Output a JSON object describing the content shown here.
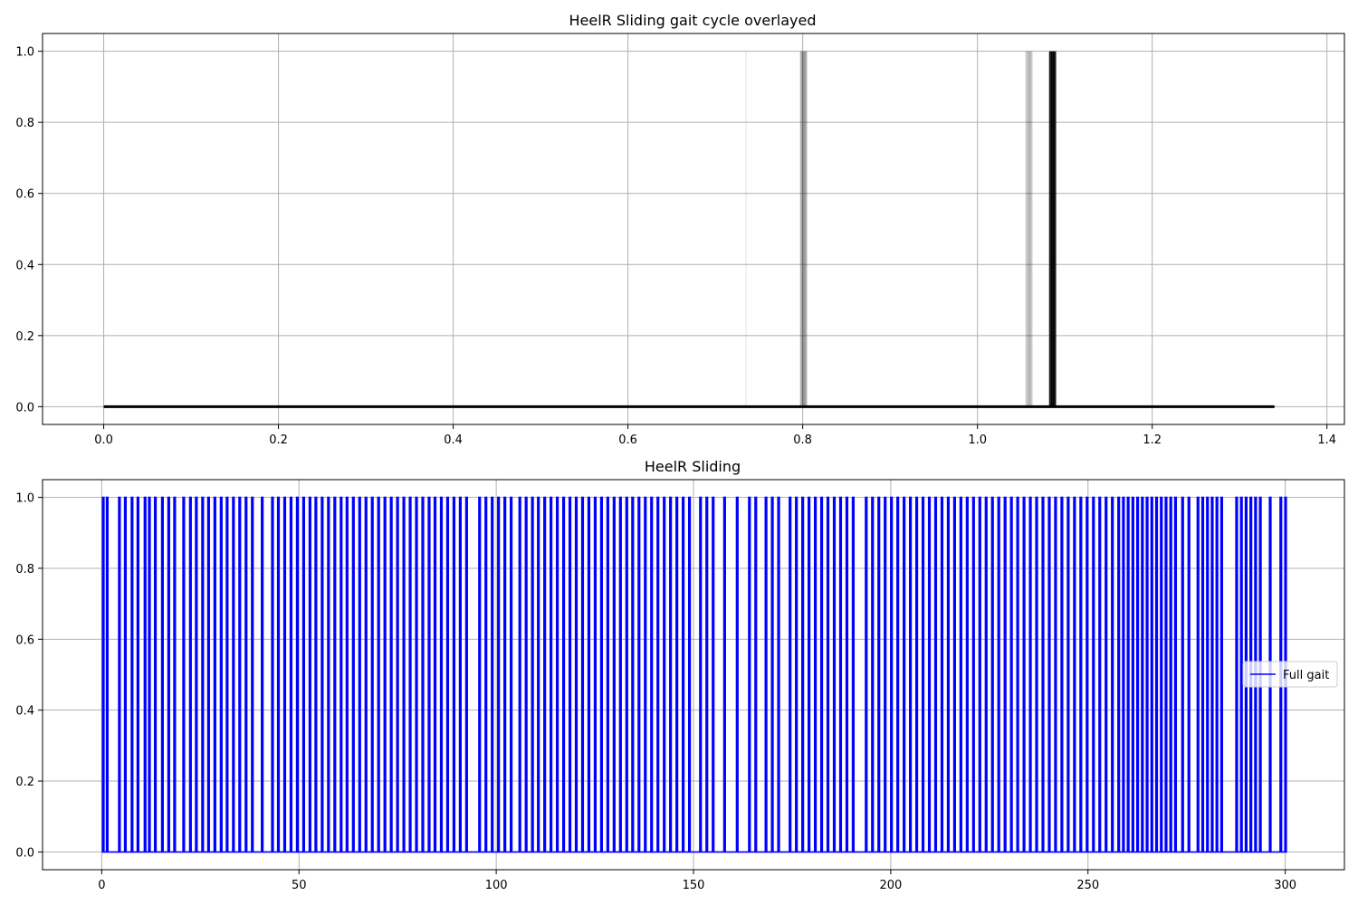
{
  "chart_data": [
    {
      "type": "line",
      "title": "HeelR Sliding gait cycle overlayed",
      "xlabel": "",
      "ylabel": "",
      "xlim": [
        -0.07,
        1.42
      ],
      "ylim": [
        -0.05,
        1.05
      ],
      "xticks": [
        0.0,
        0.2,
        0.4,
        0.6,
        0.8,
        1.0,
        1.2,
        1.4
      ],
      "xtick_labels": [
        "0.0",
        "0.2",
        "0.4",
        "0.6",
        "0.8",
        "1.0",
        "1.2",
        "1.4"
      ],
      "yticks": [
        0.0,
        0.2,
        0.4,
        0.6,
        0.8,
        1.0
      ],
      "ytick_labels": [
        "0.0",
        "0.2",
        "0.4",
        "0.6",
        "0.8",
        "1.0"
      ],
      "grid": true,
      "color": "#000000",
      "baseline": {
        "x": [
          0.0,
          1.34
        ],
        "y": 0.0
      },
      "pulses": [
        {
          "x": 0.735,
          "opacity": 0.06
        },
        {
          "x": 0.798,
          "opacity": 0.3
        },
        {
          "x": 0.8,
          "opacity": 0.4
        },
        {
          "x": 0.802,
          "opacity": 0.4
        },
        {
          "x": 0.804,
          "opacity": 0.3
        },
        {
          "x": 1.056,
          "opacity": 0.2
        },
        {
          "x": 1.058,
          "opacity": 0.25
        },
        {
          "x": 1.06,
          "opacity": 0.3
        },
        {
          "x": 1.062,
          "opacity": 0.2
        },
        {
          "x": 1.083,
          "opacity": 0.9
        },
        {
          "x": 1.085,
          "opacity": 1.0
        },
        {
          "x": 1.087,
          "opacity": 1.0
        },
        {
          "x": 1.089,
          "opacity": 0.9
        }
      ]
    },
    {
      "type": "line",
      "title": "HeelR Sliding",
      "xlabel": "",
      "ylabel": "",
      "xlim": [
        -15,
        315
      ],
      "ylim": [
        -0.05,
        1.05
      ],
      "xticks": [
        0,
        50,
        100,
        150,
        200,
        250,
        300
      ],
      "xtick_labels": [
        "0",
        "50",
        "100",
        "150",
        "200",
        "250",
        "300"
      ],
      "yticks": [
        0.0,
        0.2,
        0.4,
        0.6,
        0.8,
        1.0
      ],
      "ytick_labels": [
        "0.0",
        "0.2",
        "0.4",
        "0.6",
        "0.8",
        "1.0"
      ],
      "grid": true,
      "legend": {
        "entries": [
          "Full gait"
        ],
        "location": "center-right"
      },
      "series": [
        {
          "name": "Full gait",
          "color": "#0000ff",
          "x_range": [
            0,
            300
          ],
          "spikes": [
            0.2,
            1.2,
            4.3,
            5.8,
            7.5,
            9.0,
            10.8,
            11.9,
            13.4,
            15.2,
            16.8,
            18.3,
            20.6,
            22.3,
            23.8,
            25.4,
            26.9,
            28.5,
            30.1,
            31.6,
            33.2,
            34.8,
            36.4,
            38.0,
            40.5,
            43.1,
            44.6,
            46.2,
            47.8,
            49.4,
            51.0,
            52.6,
            54.1,
            55.7,
            57.3,
            58.9,
            60.5,
            62.0,
            63.6,
            65.2,
            66.8,
            68.4,
            70.0,
            71.6,
            73.2,
            74.8,
            76.4,
            78.0,
            79.6,
            81.2,
            82.8,
            84.3,
            85.9,
            87.5,
            89.1,
            90.7,
            92.3,
            95.6,
            97.2,
            98.8,
            100.4,
            102.0,
            103.6,
            105.8,
            107.4,
            109.0,
            110.5,
            112.1,
            113.7,
            115.3,
            116.9,
            118.5,
            120.1,
            121.7,
            123.3,
            124.9,
            126.5,
            128.1,
            129.7,
            131.3,
            132.9,
            134.4,
            136.0,
            137.6,
            139.2,
            140.8,
            142.4,
            144.0,
            145.6,
            147.2,
            148.8,
            151.6,
            153.2,
            154.8,
            157.7,
            160.9,
            164.0,
            165.6,
            168.2,
            169.8,
            171.4,
            174.3,
            175.9,
            177.5,
            179.1,
            180.7,
            182.3,
            183.9,
            185.5,
            187.1,
            188.7,
            190.3,
            193.6,
            195.2,
            196.8,
            198.4,
            200.0,
            201.6,
            203.2,
            204.8,
            206.4,
            208.0,
            209.6,
            211.2,
            212.8,
            214.4,
            216.0,
            217.6,
            219.2,
            220.8,
            222.4,
            224.0,
            225.6,
            227.2,
            228.8,
            230.4,
            232.0,
            233.6,
            235.2,
            236.8,
            238.4,
            240.0,
            241.6,
            243.2,
            244.8,
            246.4,
            248.0,
            249.6,
            251.2,
            252.8,
            254.4,
            256.0,
            257.6,
            258.8,
            260.0,
            261.2,
            262.4,
            263.6,
            264.8,
            266.0,
            267.2,
            268.4,
            269.6,
            270.8,
            272.0,
            273.8,
            275.4,
            277.7,
            278.9,
            280.1,
            281.3,
            282.5,
            283.7,
            287.5,
            288.7,
            289.9,
            291.1,
            292.3,
            293.5,
            296.0,
            298.7,
            299.9
          ]
        }
      ]
    }
  ]
}
